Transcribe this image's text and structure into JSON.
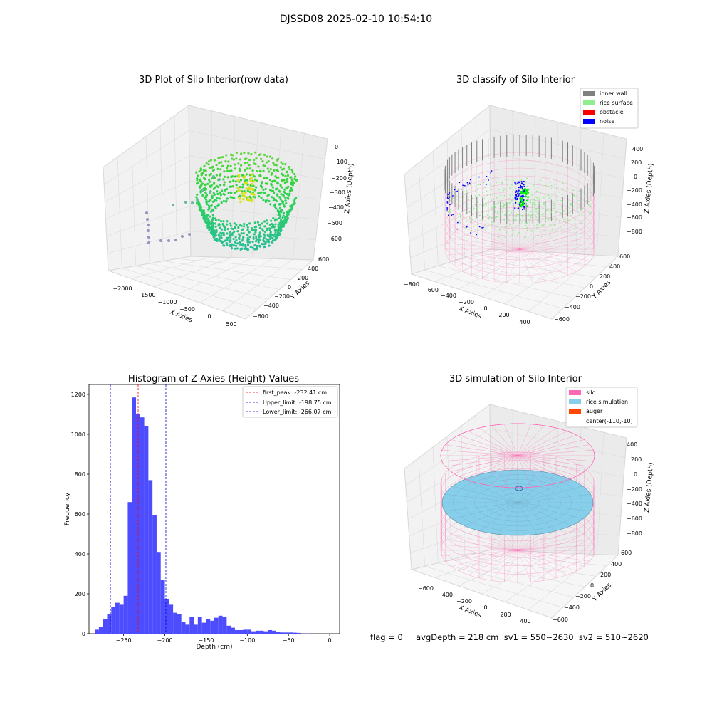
{
  "suptitle": "DJSSD08 2025-02-10 10:54:10",
  "footer": "flag = 0     avgDepth = 218 cm  sv1 = 550~2630  sv2 = 510~2620",
  "colors": {
    "inner_wall": "#808080",
    "rice_surface": "#90ee90",
    "obstacle": "#ff0000",
    "noise": "#0000ff",
    "silo": "#ff69b4",
    "rice_simulation": "#87ceeb",
    "auger": "#ff4500",
    "hist_bar": "#4d4dff"
  },
  "panels": [
    {
      "id": "raw",
      "title": "3D Plot of Silo Interior(row data)",
      "xlabel": "X Axies",
      "ylabel": "Y Axies",
      "zlabel": "Z Axies (Depth)",
      "xticks": [
        "−2000",
        "−1500",
        "−1000",
        "−500",
        "0",
        "500"
      ],
      "yticks": [
        "600",
        "400",
        "200",
        "0",
        "−200",
        "−400",
        "−600"
      ],
      "zticks": [
        "0",
        "−100",
        "−200",
        "−300",
        "−400",
        "−500",
        "−600"
      ]
    },
    {
      "id": "classify",
      "title": "3D classify of Silo Interior",
      "xlabel": "X Axies",
      "ylabel": "Y Axies",
      "zlabel": "Z Axies (Depth)",
      "xticks": [
        "−800",
        "−600",
        "−400",
        "−200",
        "0",
        "200",
        "400"
      ],
      "yticks": [
        "600",
        "400",
        "200",
        "0",
        "−200",
        "−400",
        "−600"
      ],
      "zticks": [
        "400",
        "200",
        "0",
        "−200",
        "−400",
        "−600",
        "−800"
      ],
      "legend": [
        "inner wall",
        "rice surface",
        "obstacle",
        "noise"
      ]
    },
    {
      "id": "simulation",
      "title": "3D simulation of Silo Interior",
      "xlabel": "X Axies",
      "ylabel": "Y Axies",
      "zlabel": "Z Axies (Depth)",
      "xticks": [
        "−600",
        "−400",
        "−200",
        "0",
        "200",
        "400"
      ],
      "yticks": [
        "600",
        "400",
        "200",
        "0",
        "−200",
        "−400",
        "−600"
      ],
      "zticks": [
        "400",
        "200",
        "0",
        "−200",
        "−400",
        "−600",
        "−800"
      ],
      "legend": [
        "silo",
        "rice simulation",
        "auger",
        "center(-110,-10)"
      ]
    }
  ],
  "chart_data": {
    "type": "bar",
    "title": "Histogram of Z-Axies (Height) Values",
    "xlabel": "Depth (cm)",
    "ylabel": "Frequency",
    "xlim": [
      -292,
      12
    ],
    "ylim": [
      0,
      1250
    ],
    "xticks": [
      -250,
      -200,
      -150,
      -100,
      -50,
      0
    ],
    "xtick_labels": [
      "−250",
      "−200",
      "−150",
      "−100",
      "−50",
      "0"
    ],
    "yticks": [
      0,
      200,
      400,
      600,
      800,
      1000,
      1200
    ],
    "bin_start": -285,
    "bin_width": 5,
    "values": [
      20,
      35,
      75,
      100,
      135,
      155,
      145,
      190,
      660,
      1185,
      1100,
      1085,
      1040,
      770,
      595,
      410,
      270,
      175,
      145,
      105,
      100,
      60,
      45,
      85,
      45,
      85,
      55,
      75,
      65,
      80,
      90,
      85,
      40,
      30,
      18,
      18,
      20,
      20,
      12,
      15,
      15,
      12,
      18,
      15,
      8,
      6,
      6,
      6,
      5,
      4,
      0,
      2,
      0
    ],
    "lines": [
      {
        "name": "first_peak: -232.41 cm",
        "x": -232.41,
        "color": "#ff0000"
      },
      {
        "name": "Upper_limit: -198.75 cm",
        "x": -198.75,
        "color": "#0000cc"
      },
      {
        "name": "Lower_limit: -266.07 cm",
        "x": -266.07,
        "color": "#0000cc"
      }
    ],
    "grid": false,
    "legend_position": "top-right"
  }
}
